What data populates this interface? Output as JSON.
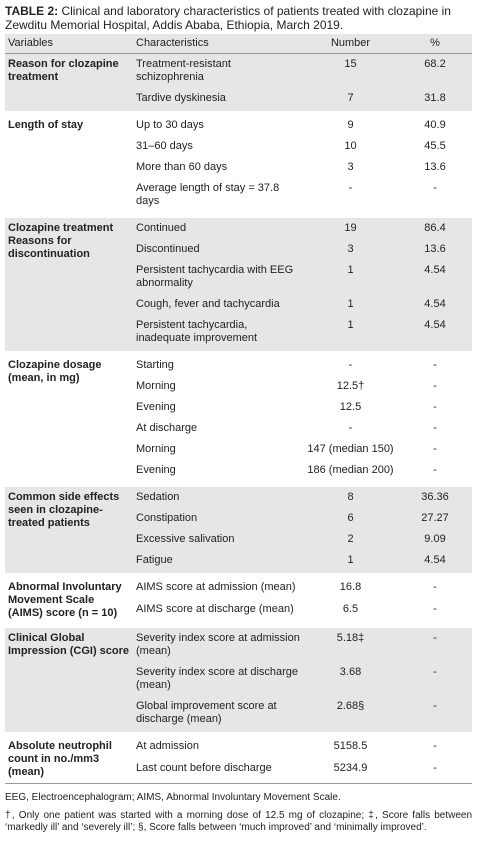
{
  "caption": {
    "label": "TABLE 2:",
    "text": "Clinical and laboratory characteristics of patients treated with clozapine in Zewditu Memorial Hospital, Addis Ababa, Ethiopia, March 2019."
  },
  "table": {
    "headers": [
      "Variables",
      "Characteristics",
      "Number",
      "%"
    ],
    "groups": [
      {
        "variable": "Reason for clozapine treatment",
        "rows": [
          [
            "Treatment-resistant schizophrenia",
            "15",
            "68.2"
          ],
          [
            "Tardive dyskinesia",
            "7",
            "31.8"
          ]
        ]
      },
      {
        "variable": "Length of stay",
        "rows": [
          [
            "Up to 30 days",
            "9",
            "40.9"
          ],
          [
            "31–60 days",
            "10",
            "45.5"
          ],
          [
            "More than 60 days",
            "3",
            "13.6"
          ],
          [
            "Average length of stay = 37.8 days",
            "-",
            "-"
          ]
        ]
      },
      {
        "variable": "Clozapine treatment Reasons for discontinuation",
        "rows": [
          [
            "Continued",
            "19",
            "86.4"
          ],
          [
            "Discontinued",
            "3",
            "13.6"
          ],
          [
            "Persistent tachycardia with EEG abnormality",
            "1",
            "4.54"
          ],
          [
            "Cough, fever and tachycardia",
            "1",
            "4.54"
          ],
          [
            "Persistent tachycardia, inadequate improvement",
            "1",
            "4.54"
          ]
        ]
      },
      {
        "variable": "Clozapine dosage (mean, in mg)",
        "rows": [
          [
            "Starting",
            "-",
            "-"
          ],
          [
            "Morning",
            "12.5†",
            "-"
          ],
          [
            "Evening",
            "12.5",
            "-"
          ],
          [
            "At discharge",
            "-",
            "-"
          ],
          [
            "Morning",
            "147 (median 150)",
            "-"
          ],
          [
            "Evening",
            "186 (median 200)",
            "-"
          ]
        ]
      },
      {
        "variable": "Common side effects seen in clozapine-treated patients",
        "rows": [
          [
            "Sedation",
            "8",
            "36.36"
          ],
          [
            "Constipation",
            "6",
            "27.27"
          ],
          [
            "Excessive salivation",
            "2",
            "9.09"
          ],
          [
            "Fatigue",
            "1",
            "4.54"
          ]
        ]
      },
      {
        "variable": "Abnormal Involuntary Movement Scale (AIMS) score (n = 10)",
        "rows": [
          [
            "AIMS score at admission (mean)",
            "16.8",
            "-"
          ],
          [
            "AIMS score at discharge (mean)",
            "6.5",
            "-"
          ]
        ]
      },
      {
        "variable": "Clinical Global Impression (CGI) score",
        "rows": [
          [
            "Severity index score at admission (mean)",
            "5.18‡",
            "-"
          ],
          [
            "Severity index score at discharge (mean)",
            "3.68",
            "-"
          ],
          [
            "Global improvement score at discharge (mean)",
            "2.68§",
            "-"
          ]
        ]
      },
      {
        "variable": "Absolute neutrophil count in no./mm3 (mean)",
        "rows": [
          [
            "At admission",
            "5158.5",
            "-"
          ],
          [
            "Last count before discharge",
            "5234.9",
            "-"
          ]
        ]
      }
    ]
  },
  "footnotes": [
    "EEG, Electroencephalogram; AIMS, Abnormal Involuntary Movement Scale.",
    "†, Only one patient was started with a morning dose of 12.5 mg of clozapine; ‡, Score falls between ‘markedly ill’ and ‘severely ill’; §, Score falls between ‘much improved’ and ‘minimally improved’."
  ]
}
